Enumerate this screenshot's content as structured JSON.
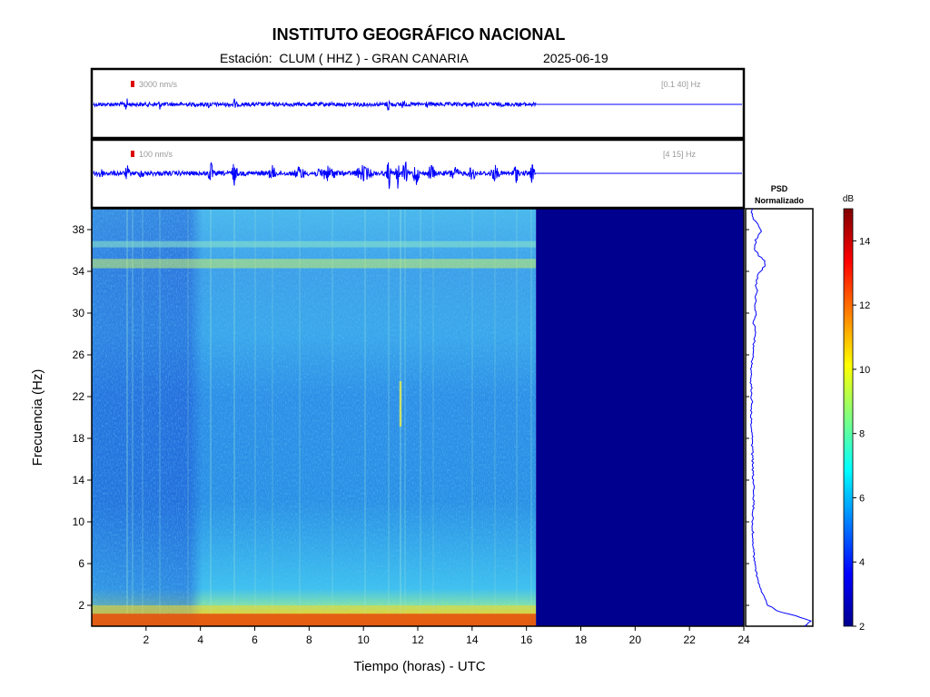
{
  "header": {
    "title": "INSTITUTO GEOGRÁFICO NACIONAL",
    "station_label": "Estación:",
    "station": "CLUM ( HHZ ) - GRAN CANARIA",
    "date": "2025-06-19"
  },
  "chart_data": [
    {
      "type": "line",
      "name": "seismogram-broadband",
      "scale_label": "3000 nm/s",
      "band_label": "[0.1 40] Hz",
      "x_range_hours": [
        0,
        24
      ],
      "data_end_hours": 16.35,
      "colors": {
        "trace": "#0000ff",
        "scale_bar": "#dd0000",
        "label": "#999999"
      }
    },
    {
      "type": "line",
      "name": "seismogram-filtered",
      "scale_label": "100 nm/s",
      "band_label": "[4 15] Hz",
      "x_range_hours": [
        0,
        24
      ],
      "data_end_hours": 16.35,
      "colors": {
        "trace": "#0000ff",
        "scale_bar": "#dd0000",
        "label": "#999999"
      }
    },
    {
      "type": "heatmap",
      "name": "spectrogram",
      "xlabel": "Tiempo (horas) - UTC",
      "ylabel": "Frecuencia  (Hz)",
      "xlim": [
        0,
        24
      ],
      "ylim": [
        0,
        40
      ],
      "x_ticks": [
        2,
        4,
        6,
        8,
        10,
        12,
        14,
        16,
        18,
        20,
        22,
        24
      ],
      "y_ticks": [
        2,
        6,
        10,
        14,
        18,
        22,
        26,
        30,
        34,
        38
      ],
      "data_end_hours": 16.35,
      "bands": [
        {
          "f_min": 0,
          "f_max": 1.2,
          "level_db": 11.5
        },
        {
          "f_min": 1.2,
          "f_max": 2.0,
          "level_db": 9
        },
        {
          "f_min": 34.3,
          "f_max": 35.2,
          "level_db": 8
        },
        {
          "f_min": 36.3,
          "f_max": 36.9,
          "level_db": 7
        }
      ]
    },
    {
      "type": "line",
      "name": "psd",
      "title": "PSD",
      "subtitle": "Normalizado",
      "ylim": [
        0,
        40
      ],
      "freq": [
        0,
        0.5,
        1,
        1.5,
        2,
        3,
        4,
        5,
        6,
        7,
        8,
        10,
        12,
        14,
        16,
        18,
        20,
        22,
        24,
        26,
        28,
        29,
        30,
        31,
        32,
        33,
        34,
        34.5,
        35,
        35.5,
        36,
        37,
        38,
        39,
        40
      ],
      "value": [
        0.9,
        1.0,
        0.75,
        0.45,
        0.33,
        0.24,
        0.18,
        0.14,
        0.12,
        0.1,
        0.09,
        0.08,
        0.1,
        0.09,
        0.08,
        0.07,
        0.06,
        0.07,
        0.05,
        0.08,
        0.12,
        0.1,
        0.13,
        0.12,
        0.15,
        0.13,
        0.2,
        0.27,
        0.28,
        0.18,
        0.12,
        0.13,
        0.22,
        0.09,
        0.06
      ]
    },
    {
      "type": "heatmap",
      "name": "colorbar",
      "label": "dB",
      "range": [
        2,
        15
      ],
      "ticks": [
        2,
        4,
        6,
        8,
        10,
        12,
        14
      ]
    }
  ]
}
